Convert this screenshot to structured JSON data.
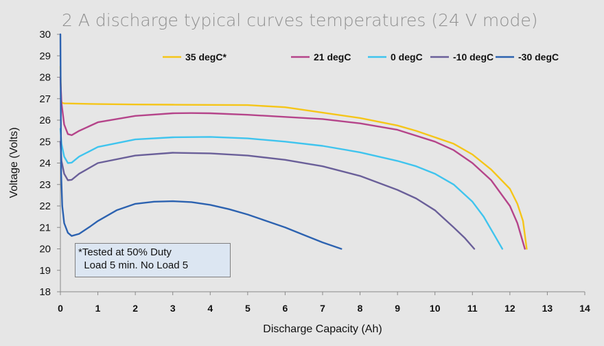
{
  "chart_data": {
    "type": "line",
    "title": "2 A discharge typical curves temperatures (24 V mode)",
    "xlabel": "Discharge Capacity (Ah)",
    "ylabel": "Voltage (Volts)",
    "xlim": [
      0,
      14
    ],
    "ylim": [
      18,
      30
    ],
    "x_ticks": [
      "0",
      "1",
      "2",
      "3",
      "4",
      "5",
      "6",
      "7",
      "8",
      "9",
      "10",
      "11",
      "12",
      "13",
      "14"
    ],
    "y_ticks": [
      "18",
      "19",
      "20",
      "21",
      "22",
      "23",
      "24",
      "25",
      "26",
      "27",
      "28",
      "29",
      "30"
    ],
    "grid": false,
    "legend_position": "top",
    "series": [
      {
        "name": "35 degC*",
        "color": "#f5c518",
        "x": [
          0,
          0.02,
          0.05,
          0.1,
          1,
          2,
          3,
          4,
          5,
          6,
          7,
          8,
          9,
          9.5,
          10,
          10.5,
          11,
          11.5,
          12,
          12.2,
          12.35,
          12.45
        ],
        "y": [
          28.5,
          26.9,
          26.8,
          26.78,
          26.75,
          26.73,
          26.72,
          26.71,
          26.7,
          26.6,
          26.35,
          26.1,
          25.75,
          25.5,
          25.2,
          24.9,
          24.4,
          23.7,
          22.8,
          22.1,
          21.3,
          20.0
        ]
      },
      {
        "name": "21 degC",
        "color": "#b5448a",
        "x": [
          0,
          0.03,
          0.1,
          0.2,
          0.3,
          0.5,
          1,
          2,
          3,
          3.5,
          4,
          5,
          6,
          7,
          8,
          9,
          10,
          10.5,
          11,
          11.5,
          12,
          12.2,
          12.4
        ],
        "y": [
          28.0,
          26.8,
          25.8,
          25.35,
          25.3,
          25.5,
          25.9,
          26.2,
          26.32,
          26.33,
          26.32,
          26.25,
          26.15,
          26.05,
          25.85,
          25.55,
          25.0,
          24.6,
          24.0,
          23.2,
          22.0,
          21.2,
          20.0
        ]
      },
      {
        "name": "0 degC",
        "color": "#3fc4ee",
        "x": [
          0,
          0.03,
          0.1,
          0.2,
          0.3,
          0.5,
          1,
          2,
          3,
          4,
          5,
          6,
          7,
          8,
          9,
          9.5,
          10,
          10.5,
          11,
          11.3,
          11.6,
          11.8
        ],
        "y": [
          25.6,
          24.9,
          24.3,
          24.0,
          24.02,
          24.3,
          24.75,
          25.1,
          25.2,
          25.22,
          25.15,
          25.0,
          24.8,
          24.5,
          24.1,
          23.85,
          23.5,
          23.0,
          22.2,
          21.5,
          20.6,
          20.0
        ]
      },
      {
        "name": "-10 degC",
        "color": "#6a5f99",
        "x": [
          0,
          0.03,
          0.1,
          0.2,
          0.3,
          0.5,
          1,
          2,
          3,
          4,
          5,
          6,
          7,
          8,
          9,
          9.5,
          10,
          10.5,
          10.8,
          11.05
        ],
        "y": [
          25.0,
          24.1,
          23.5,
          23.2,
          23.22,
          23.5,
          24.0,
          24.35,
          24.48,
          24.45,
          24.35,
          24.15,
          23.85,
          23.4,
          22.75,
          22.35,
          21.8,
          21.0,
          20.5,
          20.0
        ]
      },
      {
        "name": "-30 degC",
        "color": "#2c62b0",
        "x": [
          0,
          0.02,
          0.05,
          0.1,
          0.2,
          0.3,
          0.5,
          0.8,
          1,
          1.5,
          2,
          2.5,
          3,
          3.5,
          4,
          4.5,
          5,
          5.5,
          6,
          6.5,
          7,
          7.5
        ],
        "y": [
          30,
          23.5,
          22.0,
          21.2,
          20.75,
          20.6,
          20.7,
          21.05,
          21.3,
          21.8,
          22.1,
          22.2,
          22.22,
          22.18,
          22.05,
          21.85,
          21.6,
          21.3,
          21.0,
          20.65,
          20.3,
          20.0
        ]
      }
    ],
    "annotation": [
      "*Tested at 50% Duty",
      "  Load 5 min. No Load 5"
    ]
  }
}
